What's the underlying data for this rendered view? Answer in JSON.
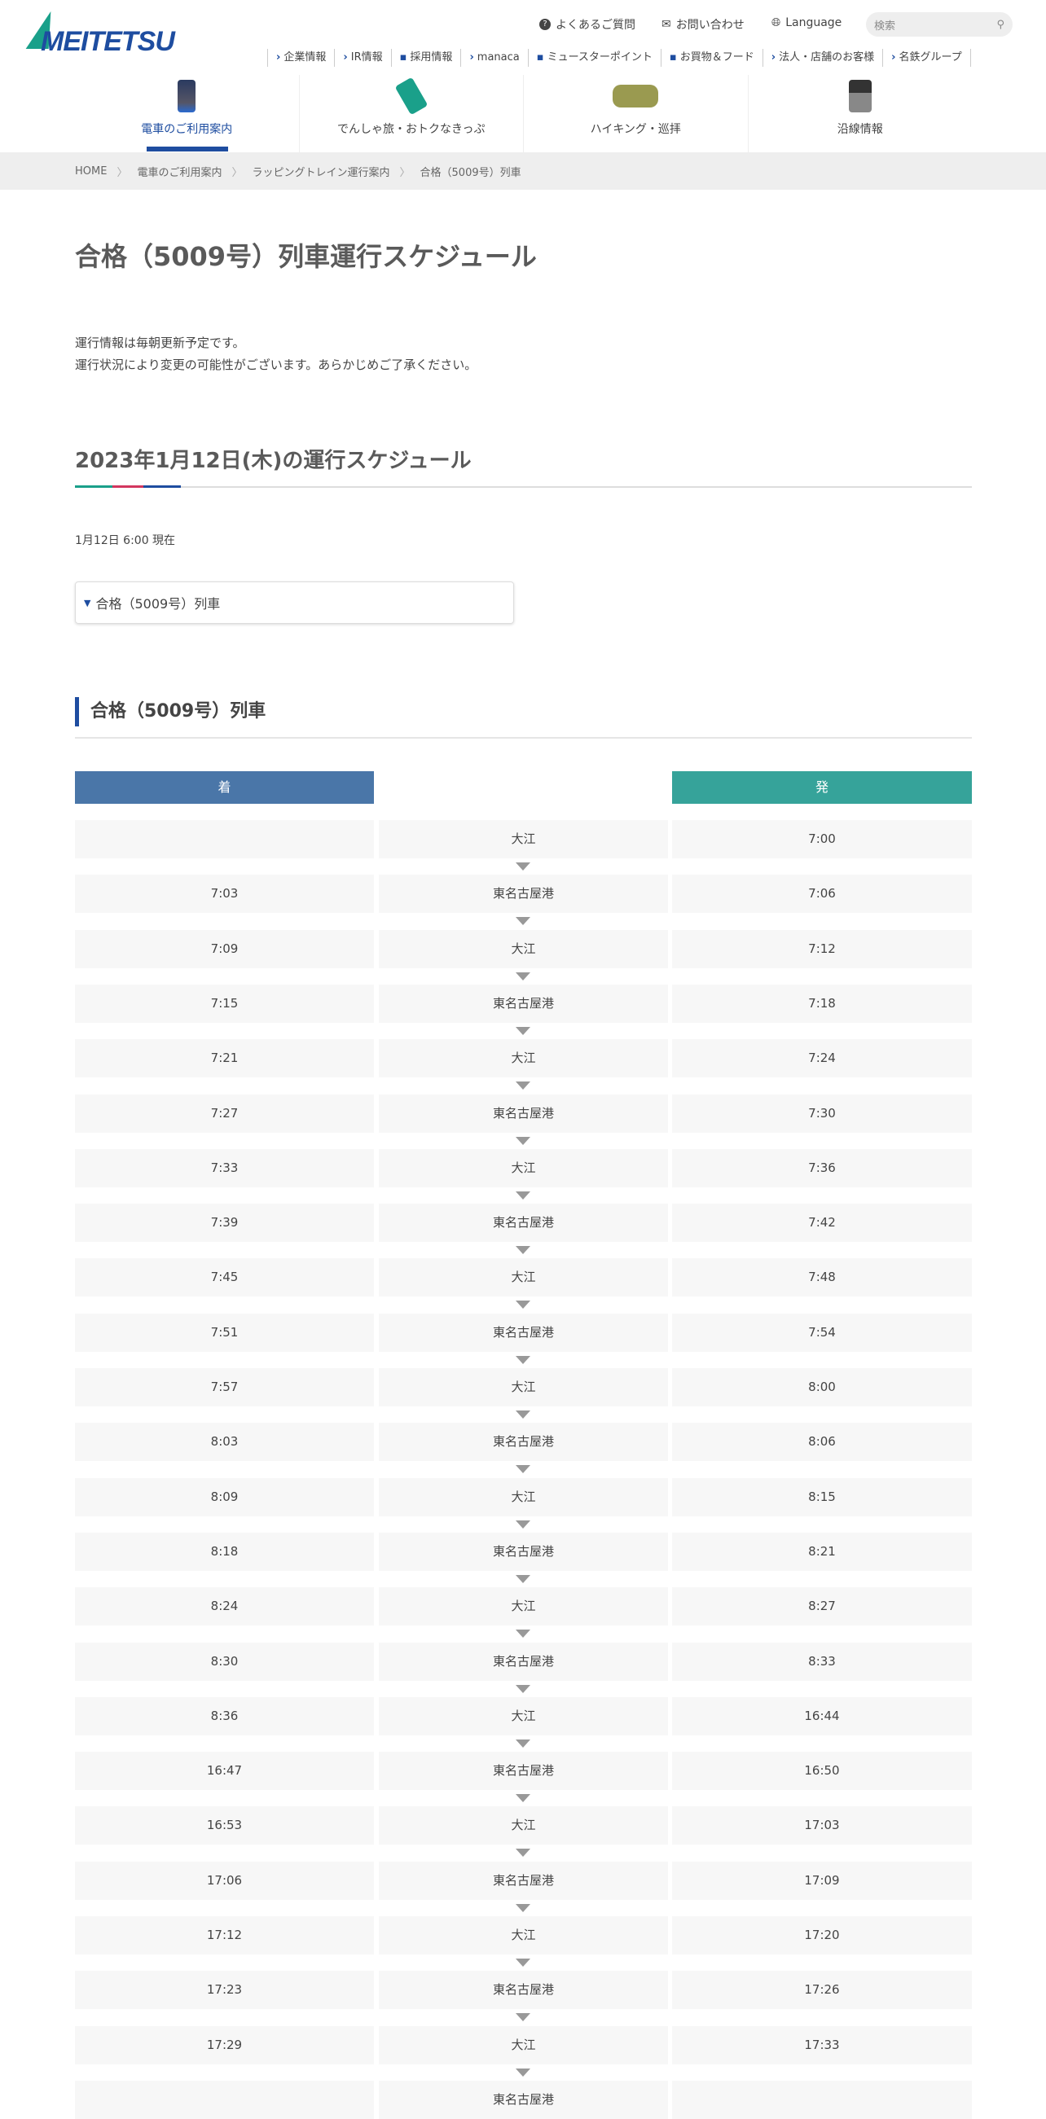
{
  "header": {
    "logo_text": "MEITETSU",
    "util": [
      {
        "icon": "question-icon",
        "label": "よくあるご質問"
      },
      {
        "icon": "mail-icon",
        "label": "お問い合わせ"
      },
      {
        "icon": "globe-icon",
        "label": "Language"
      }
    ],
    "search_placeholder": "検索",
    "subnav": [
      "企業情報",
      "IR情報",
      "採用情報",
      "manaca",
      "ミュースターポイント",
      "お買物＆フード",
      "法人・店舗のお客様",
      "名鉄グループ"
    ],
    "mainnav": [
      {
        "label": "電車のご利用案内",
        "active": true
      },
      {
        "label": "でんしゃ旅・おトクなきっぷ"
      },
      {
        "label": "ハイキング・巡拝"
      },
      {
        "label": "沿線情報"
      }
    ]
  },
  "breadcrumb": [
    "HOME",
    "電車のご利用案内",
    "ラッピングトレイン運行案内",
    "合格（5009号）列車"
  ],
  "main": {
    "title": "合格（5009号）列車運行スケジュール",
    "notes": [
      "運行情報は毎朝更新予定です。",
      "運行状況により変更の可能性がございます。あらかじめご了承ください。"
    ],
    "schedule_heading": "2023年1月12日(木)の運行スケジュール",
    "as_of": "1月12日 6:00 現在",
    "accordion_label": "合格（5009号）列車",
    "section_heading": "合格（5009号）列車",
    "colors": {
      "accent": "#1e4da0",
      "arrive": "#4a76a8",
      "depart": "#36a39a",
      "teal": "#1aa08a",
      "red": "#d2365e",
      "navy": "#1e4da0"
    },
    "table": {
      "arrive_header": "着",
      "depart_header": "発",
      "rows": [
        {
          "arr": "",
          "station": "大江",
          "dep": "7:00"
        },
        {
          "arr": "7:03",
          "station": "東名古屋港",
          "dep": "7:06"
        },
        {
          "arr": "7:09",
          "station": "大江",
          "dep": "7:12"
        },
        {
          "arr": "7:15",
          "station": "東名古屋港",
          "dep": "7:18"
        },
        {
          "arr": "7:21",
          "station": "大江",
          "dep": "7:24"
        },
        {
          "arr": "7:27",
          "station": "東名古屋港",
          "dep": "7:30"
        },
        {
          "arr": "7:33",
          "station": "大江",
          "dep": "7:36"
        },
        {
          "arr": "7:39",
          "station": "東名古屋港",
          "dep": "7:42"
        },
        {
          "arr": "7:45",
          "station": "大江",
          "dep": "7:48"
        },
        {
          "arr": "7:51",
          "station": "東名古屋港",
          "dep": "7:54"
        },
        {
          "arr": "7:57",
          "station": "大江",
          "dep": "8:00"
        },
        {
          "arr": "8:03",
          "station": "東名古屋港",
          "dep": "8:06"
        },
        {
          "arr": "8:09",
          "station": "大江",
          "dep": "8:15"
        },
        {
          "arr": "8:18",
          "station": "東名古屋港",
          "dep": "8:21"
        },
        {
          "arr": "8:24",
          "station": "大江",
          "dep": "8:27"
        },
        {
          "arr": "8:30",
          "station": "東名古屋港",
          "dep": "8:33"
        },
        {
          "arr": "8:36",
          "station": "大江",
          "dep": "16:44"
        },
        {
          "arr": "16:47",
          "station": "東名古屋港",
          "dep": "16:50"
        },
        {
          "arr": "16:53",
          "station": "大江",
          "dep": "17:03"
        },
        {
          "arr": "17:06",
          "station": "東名古屋港",
          "dep": "17:09"
        },
        {
          "arr": "17:12",
          "station": "大江",
          "dep": "17:20"
        },
        {
          "arr": "17:23",
          "station": "東名古屋港",
          "dep": "17:26"
        },
        {
          "arr": "17:29",
          "station": "大江",
          "dep": "17:33"
        },
        {
          "arr": "",
          "station": "東名古屋港",
          "dep": ""
        }
      ]
    }
  }
}
